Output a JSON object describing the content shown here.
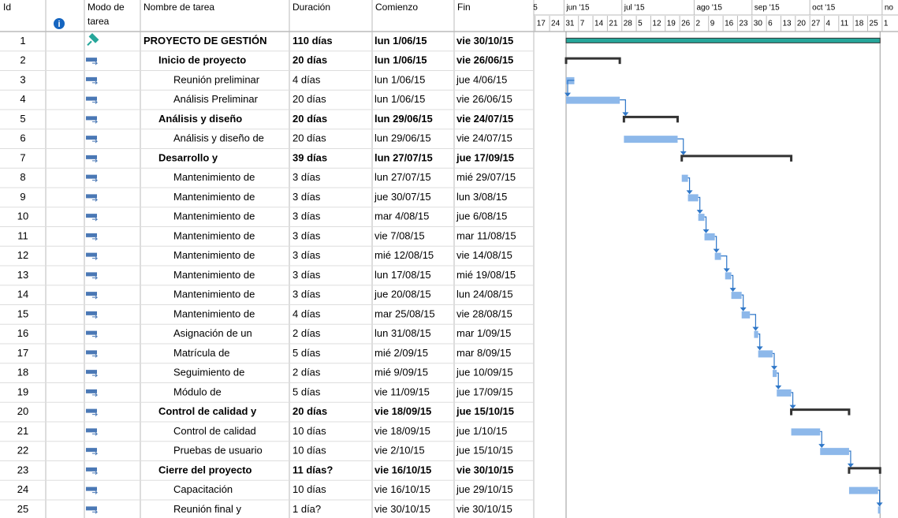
{
  "header": {
    "id": "Id",
    "mode": [
      "Modo de",
      "tarea"
    ],
    "name": "Nombre de tarea",
    "duration": "Duración",
    "start": "Comienzo",
    "finish": "Fin",
    "months": [
      "5",
      "jun '15",
      "jul '15",
      "ago '15",
      "sep '15",
      "oct '15",
      "no"
    ],
    "weeks": [
      "17",
      "24",
      "31",
      "7",
      "14",
      "21",
      "28",
      "5",
      "12",
      "19",
      "26",
      "2",
      "9",
      "16",
      "23",
      "30",
      "6",
      "13",
      "20",
      "27",
      "4",
      "11",
      "18",
      "25",
      "1"
    ]
  },
  "rows": [
    {
      "id": 1,
      "name": "PROYECTO DE GESTIÓN",
      "duration": "110 días",
      "start": "lun 1/06/15",
      "finish": "vie 30/10/15",
      "level": 0
    },
    {
      "id": 2,
      "name": "Inicio de proyecto",
      "duration": "20 días",
      "start": "lun 1/06/15",
      "finish": "vie 26/06/15",
      "level": 1
    },
    {
      "id": 3,
      "name": "Reunión preliminar",
      "duration": "4 días",
      "start": "lun 1/06/15",
      "finish": "jue 4/06/15",
      "level": 2
    },
    {
      "id": 4,
      "name": "Análisis Preliminar",
      "duration": "20 días",
      "start": "lun 1/06/15",
      "finish": "vie 26/06/15",
      "level": 2
    },
    {
      "id": 5,
      "name": "Análisis y diseño",
      "duration": "20 días",
      "start": "lun 29/06/15",
      "finish": "vie 24/07/15",
      "level": 1
    },
    {
      "id": 6,
      "name": "Análisis y diseño de",
      "duration": "20 días",
      "start": "lun 29/06/15",
      "finish": "vie 24/07/15",
      "level": 2
    },
    {
      "id": 7,
      "name": "Desarrollo y",
      "duration": "39 días",
      "start": "lun 27/07/15",
      "finish": "jue 17/09/15",
      "level": 1
    },
    {
      "id": 8,
      "name": "Mantenimiento de",
      "duration": "3 días",
      "start": "lun 27/07/15",
      "finish": "mié 29/07/15",
      "level": 2
    },
    {
      "id": 9,
      "name": "Mantenimiento de",
      "duration": "3 días",
      "start": "jue 30/07/15",
      "finish": "lun 3/08/15",
      "level": 2
    },
    {
      "id": 10,
      "name": "Mantenimiento de",
      "duration": "3 días",
      "start": "mar 4/08/15",
      "finish": "jue 6/08/15",
      "level": 2
    },
    {
      "id": 11,
      "name": "Mantenimiento de",
      "duration": "3 días",
      "start": "vie 7/08/15",
      "finish": "mar 11/08/15",
      "level": 2
    },
    {
      "id": 12,
      "name": "Mantenimiento de",
      "duration": "3 días",
      "start": "mié 12/08/15",
      "finish": "vie 14/08/15",
      "level": 2
    },
    {
      "id": 13,
      "name": "Mantenimiento de",
      "duration": "3 días",
      "start": "lun 17/08/15",
      "finish": "mié 19/08/15",
      "level": 2
    },
    {
      "id": 14,
      "name": "Mantenimiento de",
      "duration": "3 días",
      "start": "jue 20/08/15",
      "finish": "lun 24/08/15",
      "level": 2
    },
    {
      "id": 15,
      "name": "Mantenimiento de",
      "duration": "4 días",
      "start": "mar 25/08/15",
      "finish": "vie 28/08/15",
      "level": 2
    },
    {
      "id": 16,
      "name": "Asignación de un",
      "duration": "2 días",
      "start": "lun 31/08/15",
      "finish": "mar 1/09/15",
      "level": 2
    },
    {
      "id": 17,
      "name": "Matrícula de",
      "duration": "5 días",
      "start": "mié 2/09/15",
      "finish": "mar 8/09/15",
      "level": 2
    },
    {
      "id": 18,
      "name": "Seguimiento de",
      "duration": "2 días",
      "start": "mié 9/09/15",
      "finish": "jue 10/09/15",
      "level": 2
    },
    {
      "id": 19,
      "name": "Módulo de",
      "duration": "5 días",
      "start": "vie 11/09/15",
      "finish": "jue 17/09/15",
      "level": 2
    },
    {
      "id": 20,
      "name": "Control de calidad y",
      "duration": "20 días",
      "start": "vie 18/09/15",
      "finish": "jue 15/10/15",
      "level": 1
    },
    {
      "id": 21,
      "name": "Control de calidad",
      "duration": "10 días",
      "start": "vie 18/09/15",
      "finish": "jue 1/10/15",
      "level": 2
    },
    {
      "id": 22,
      "name": "Pruebas de usuario",
      "duration": "10 días",
      "start": "vie 2/10/15",
      "finish": "jue 15/10/15",
      "level": 2
    },
    {
      "id": 23,
      "name": "Cierre del proyecto",
      "duration": "11 días?",
      "start": "vie 16/10/15",
      "finish": "vie 30/10/15",
      "level": 1
    },
    {
      "id": 24,
      "name": "Capacitación",
      "duration": "10 días",
      "start": "vie 16/10/15",
      "finish": "jue 29/10/15",
      "level": 2
    },
    {
      "id": 25,
      "name": "Reunión final y",
      "duration": "1 día?",
      "start": "vie 30/10/15",
      "finish": "vie 30/10/15",
      "level": 2
    }
  ]
}
